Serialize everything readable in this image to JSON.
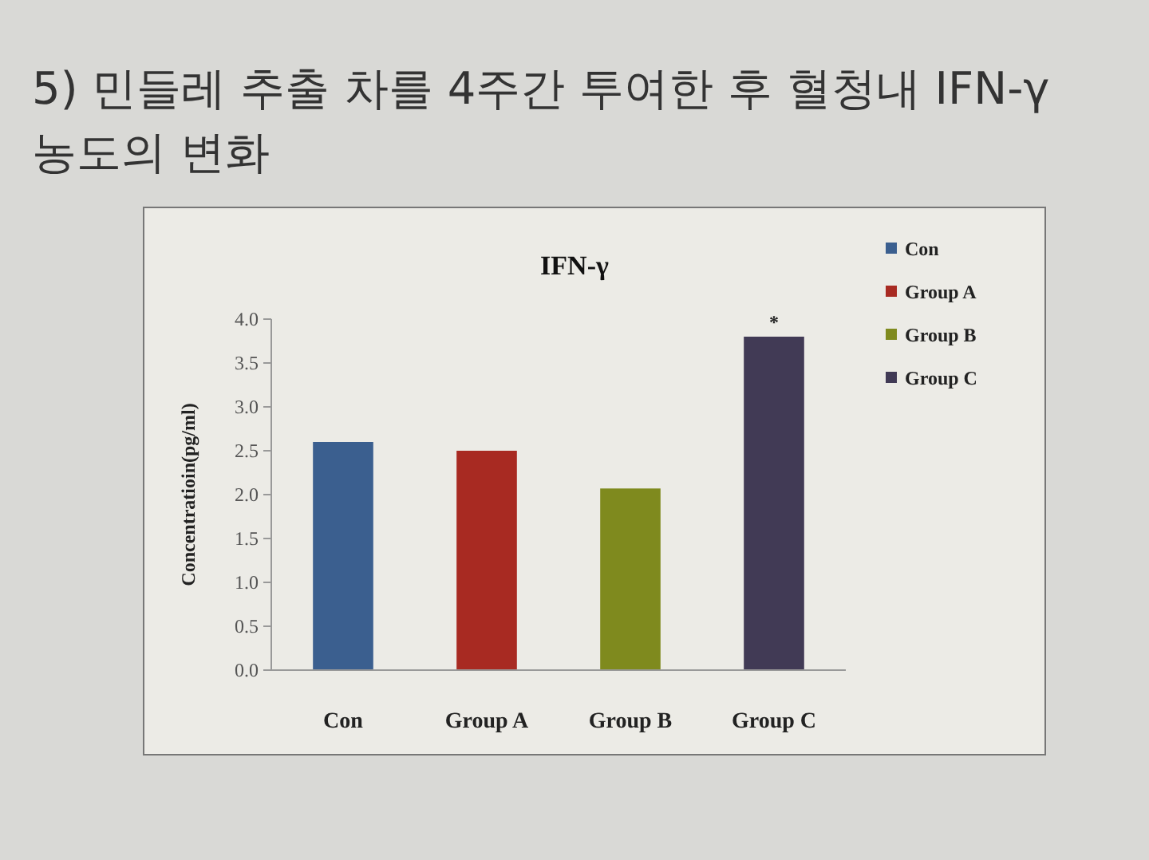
{
  "chart_data": {
    "type": "bar",
    "title": "5) 민들레 추출 차를 4주간 투여한 후 혈청내 IFN-γ 농도의 변화",
    "subtitle": "IFN-γ",
    "ylabel": "Concentratioin(pg/ml)",
    "categories": [
      "Con",
      "Group A",
      "Group B",
      "Group C"
    ],
    "series": [
      {
        "name": "Con",
        "color": "#3b5f8f",
        "values": [
          2.6,
          null,
          null,
          null
        ]
      },
      {
        "name": "Group A",
        "color": "#a82a22",
        "values": [
          null,
          2.5,
          null,
          null
        ]
      },
      {
        "name": "Group B",
        "color": "#7f8a1e",
        "values": [
          null,
          null,
          2.07,
          null
        ]
      },
      {
        "name": "Group C",
        "color": "#413a55",
        "values": [
          null,
          null,
          null,
          3.8
        ]
      }
    ],
    "ylim": [
      0,
      4
    ],
    "yticks": [
      {
        "value": 0,
        "label": "0.0"
      },
      {
        "value": 0.5,
        "label": "0.5"
      },
      {
        "value": 1,
        "label": "1.0"
      },
      {
        "value": 1.5,
        "label": "1.5"
      },
      {
        "value": 2,
        "label": "2.0"
      },
      {
        "value": 2.5,
        "label": "2.5"
      },
      {
        "value": 3,
        "label": "3.0"
      },
      {
        "value": 3.5,
        "label": "3.5"
      },
      {
        "value": 4,
        "label": "4.0"
      }
    ],
    "annotations": [
      {
        "text": "*",
        "x": "Group C",
        "y": 3.8
      }
    ],
    "legend": "right",
    "grid": false
  }
}
